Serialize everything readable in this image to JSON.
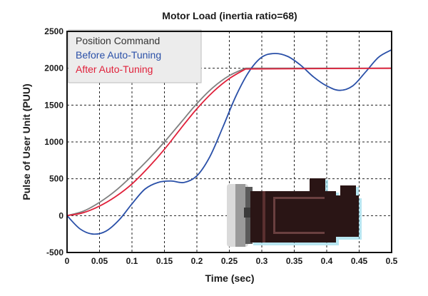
{
  "chart_data": {
    "type": "line",
    "title": "Motor Load (inertia ratio=68)",
    "xlabel": "Time (sec)",
    "ylabel": "Pulse of User Unit (PUU)",
    "xlim": [
      0,
      0.5
    ],
    "ylim": [
      -500,
      2500
    ],
    "x_ticks": [
      "0",
      "0.05",
      "0.1",
      "0.15",
      "0.2",
      "0.25",
      "0.3",
      "0.35",
      "0.4",
      "0.45",
      "0.5"
    ],
    "y_ticks": [
      "2500",
      "2000",
      "1500",
      "1000",
      "500",
      "0",
      "-500"
    ],
    "grid": true,
    "legend_position": "top-left",
    "series": [
      {
        "name": "Position Command",
        "color": "#808080",
        "x": [
          0,
          0.025,
          0.05,
          0.075,
          0.1,
          0.125,
          0.15,
          0.175,
          0.2,
          0.225,
          0.25,
          0.275,
          0.5
        ],
        "y": [
          0,
          60,
          180,
          340,
          540,
          760,
          1000,
          1260,
          1520,
          1740,
          1900,
          2000,
          2000
        ]
      },
      {
        "name": "Before Auto-Tuning",
        "color": "#2a50a8",
        "x": [
          0,
          0.02,
          0.04,
          0.06,
          0.08,
          0.1,
          0.12,
          0.14,
          0.16,
          0.18,
          0.2,
          0.22,
          0.24,
          0.26,
          0.28,
          0.3,
          0.32,
          0.34,
          0.36,
          0.38,
          0.4,
          0.42,
          0.44,
          0.46,
          0.48,
          0.5
        ],
        "y": [
          0,
          -180,
          -250,
          -210,
          -60,
          160,
          360,
          450,
          470,
          450,
          540,
          800,
          1200,
          1620,
          1950,
          2150,
          2200,
          2160,
          2040,
          1880,
          1760,
          1700,
          1760,
          1950,
          2150,
          2250
        ]
      },
      {
        "name": "After Auto-Tuning",
        "color": "#e0203a",
        "x": [
          0,
          0.025,
          0.05,
          0.075,
          0.1,
          0.125,
          0.15,
          0.175,
          0.2,
          0.225,
          0.25,
          0.275,
          0.5
        ],
        "y": [
          0,
          40,
          130,
          260,
          430,
          650,
          900,
          1180,
          1450,
          1680,
          1860,
          1990,
          2000
        ]
      }
    ]
  }
}
